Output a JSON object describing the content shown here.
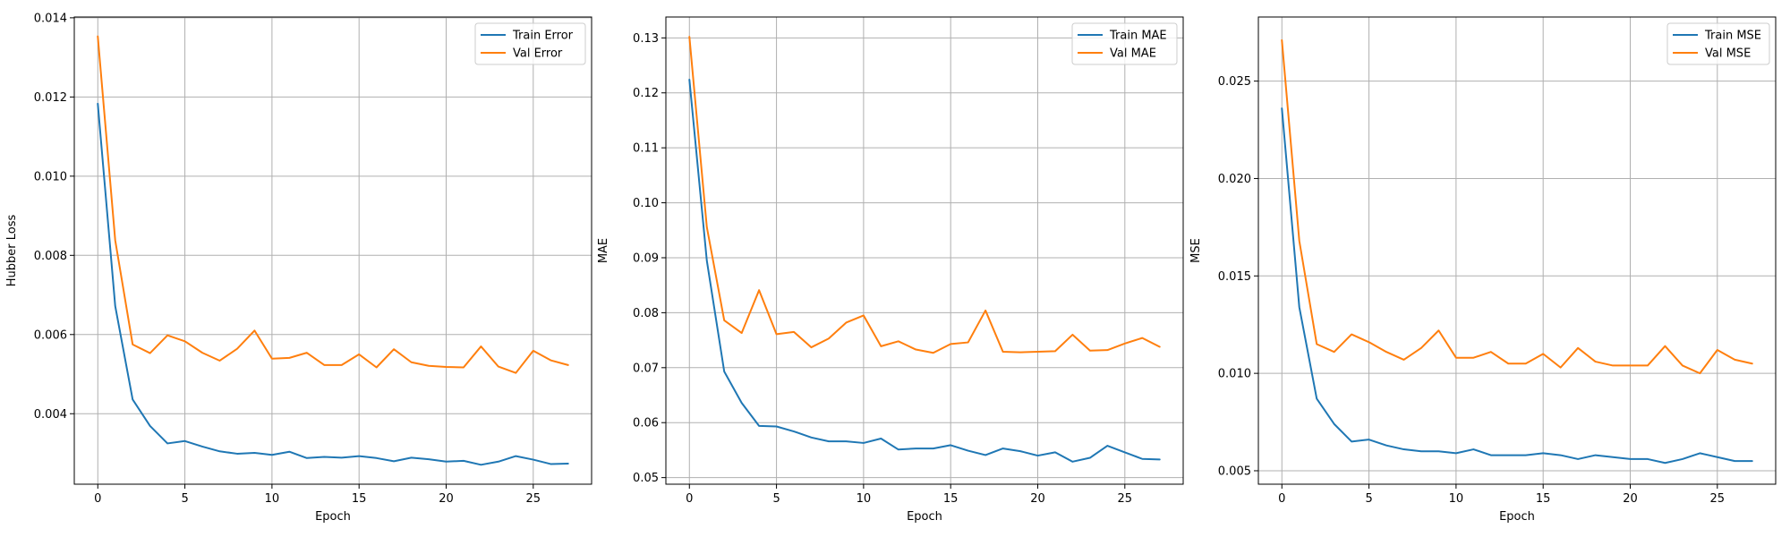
{
  "colors": {
    "train": "#1f77b4",
    "val": "#ff7f0e"
  },
  "chart_data": [
    {
      "type": "line",
      "xlabel": "Epoch",
      "ylabel": "Hubber Loss",
      "xlim": [
        -1.35,
        28.35
      ],
      "ylim": [
        0.00222,
        0.01402
      ],
      "xticks": [
        0,
        5,
        10,
        15,
        20,
        25
      ],
      "yticks": [
        0.004,
        0.006,
        0.008,
        0.01,
        0.012,
        0.014
      ],
      "ytick_labels": [
        "0.004",
        "0.006",
        "0.008",
        "0.010",
        "0.012",
        "0.014"
      ],
      "grid": true,
      "legend_position": "upper right",
      "x": [
        0,
        1,
        2,
        3,
        4,
        5,
        6,
        7,
        8,
        9,
        10,
        11,
        12,
        13,
        14,
        15,
        16,
        17,
        18,
        19,
        20,
        21,
        22,
        23,
        24,
        25,
        26,
        27
      ],
      "series": [
        {
          "name": "Train Error",
          "color": "#1f77b4",
          "values": [
            0.01183,
            0.00672,
            0.00436,
            0.00369,
            0.00325,
            0.00331,
            0.00317,
            0.00305,
            0.00299,
            0.00301,
            0.00296,
            0.00304,
            0.00288,
            0.00291,
            0.00289,
            0.00293,
            0.00288,
            0.0028,
            0.00289,
            0.00285,
            0.00279,
            0.00281,
            0.00271,
            0.00279,
            0.00293,
            0.00284,
            0.00273,
            0.00274
          ]
        },
        {
          "name": "Val Error",
          "color": "#ff7f0e",
          "values": [
            0.01353,
            0.00838,
            0.00575,
            0.00553,
            0.00598,
            0.00583,
            0.00554,
            0.00534,
            0.00564,
            0.0061,
            0.00539,
            0.00541,
            0.00554,
            0.00523,
            0.00523,
            0.0055,
            0.00517,
            0.00563,
            0.0053,
            0.00521,
            0.00518,
            0.00517,
            0.0057,
            0.00519,
            0.00503,
            0.00559,
            0.00535,
            0.00523
          ]
        }
      ]
    },
    {
      "type": "line",
      "xlabel": "Epoch",
      "ylabel": "MAE",
      "xlim": [
        -1.35,
        28.35
      ],
      "ylim": [
        0.0488,
        0.1338
      ],
      "xticks": [
        0,
        5,
        10,
        15,
        20,
        25
      ],
      "yticks": [
        0.05,
        0.06,
        0.07,
        0.08,
        0.09,
        0.1,
        0.11,
        0.12,
        0.13
      ],
      "ytick_labels": [
        "0.05",
        "0.06",
        "0.07",
        "0.08",
        "0.09",
        "0.10",
        "0.11",
        "0.12",
        "0.13"
      ],
      "grid": true,
      "legend_position": "upper right",
      "x": [
        0,
        1,
        2,
        3,
        4,
        5,
        6,
        7,
        8,
        9,
        10,
        11,
        12,
        13,
        14,
        15,
        16,
        17,
        18,
        19,
        20,
        21,
        22,
        23,
        24,
        25,
        26,
        27
      ],
      "series": [
        {
          "name": "Train MAE",
          "color": "#1f77b4",
          "values": [
            0.1224,
            0.0895,
            0.0693,
            0.0636,
            0.0594,
            0.0593,
            0.0584,
            0.0573,
            0.0566,
            0.0566,
            0.0563,
            0.0571,
            0.0551,
            0.0553,
            0.0553,
            0.0559,
            0.0549,
            0.0541,
            0.0553,
            0.0548,
            0.054,
            0.0546,
            0.0529,
            0.0536,
            0.0558,
            0.0546,
            0.0534,
            0.0533
          ]
        },
        {
          "name": "Val MAE",
          "color": "#ff7f0e",
          "values": [
            0.1302,
            0.0956,
            0.0786,
            0.0763,
            0.0841,
            0.0761,
            0.0765,
            0.0737,
            0.0753,
            0.0782,
            0.0795,
            0.0739,
            0.0748,
            0.0733,
            0.0727,
            0.0743,
            0.0746,
            0.0804,
            0.0729,
            0.0728,
            0.0729,
            0.073,
            0.076,
            0.0731,
            0.0732,
            0.0744,
            0.0754,
            0.0738
          ]
        }
      ]
    },
    {
      "type": "line",
      "xlabel": "Epoch",
      "ylabel": "MSE",
      "xlim": [
        -1.35,
        28.35
      ],
      "ylim": [
        0.00431,
        0.02829
      ],
      "xticks": [
        0,
        5,
        10,
        15,
        20,
        25
      ],
      "yticks": [
        0.005,
        0.01,
        0.015,
        0.02,
        0.025
      ],
      "ytick_labels": [
        "0.005",
        "0.010",
        "0.015",
        "0.020",
        "0.025"
      ],
      "grid": true,
      "legend_position": "upper right",
      "x": [
        0,
        1,
        2,
        3,
        4,
        5,
        6,
        7,
        8,
        9,
        10,
        11,
        12,
        13,
        14,
        15,
        16,
        17,
        18,
        19,
        20,
        21,
        22,
        23,
        24,
        25,
        26,
        27
      ],
      "series": [
        {
          "name": "Train MSE",
          "color": "#1f77b4",
          "values": [
            0.0236,
            0.0134,
            0.0087,
            0.0074,
            0.0065,
            0.0066,
            0.0063,
            0.0061,
            0.006,
            0.006,
            0.0059,
            0.0061,
            0.0058,
            0.0058,
            0.0058,
            0.0059,
            0.0058,
            0.0056,
            0.0058,
            0.0057,
            0.0056,
            0.0056,
            0.0054,
            0.0056,
            0.0059,
            0.0057,
            0.0055,
            0.0055
          ]
        },
        {
          "name": "Val MSE",
          "color": "#ff7f0e",
          "values": [
            0.0271,
            0.0168,
            0.0115,
            0.0111,
            0.012,
            0.0116,
            0.0111,
            0.0107,
            0.0113,
            0.0122,
            0.0108,
            0.0108,
            0.0111,
            0.0105,
            0.0105,
            0.011,
            0.0103,
            0.0113,
            0.0106,
            0.0104,
            0.0104,
            0.0104,
            0.0114,
            0.0104,
            0.01,
            0.0112,
            0.0107,
            0.0105
          ]
        }
      ]
    }
  ]
}
